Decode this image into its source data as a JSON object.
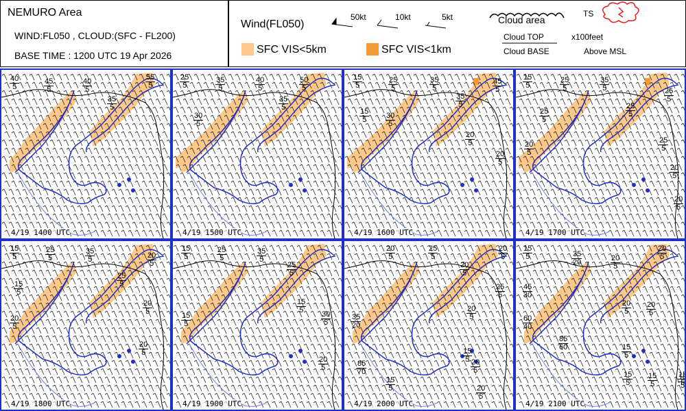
{
  "header": {
    "area": "NEMURO Area",
    "wind_cloud": "WIND:FL050 , CLOUD:(SFC - FL200)",
    "base_time": "BASE TIME : 1200 UTC 19 Apr 2026"
  },
  "legend": {
    "wind_title": "Wind(FL050)",
    "barb_50": "50kt",
    "barb_10": "10kt",
    "barb_5": "5kt",
    "cloud_area": "Cloud area",
    "ts": "TS",
    "cloud_top": "Cloud TOP",
    "cloud_base": "Cloud BASE",
    "unit": "x100feet",
    "above": "Above MSL",
    "vis5": "SFC VIS<5km",
    "vis1": "SFC VIS<1km",
    "vis5_color": "#fdc98a",
    "vis1_color": "#f59a38"
  },
  "panels": [
    {
      "label": "4/19 1400 UTC",
      "clouds": [
        [
          "40",
          "5"
        ],
        [
          "45",
          "5"
        ],
        [
          "40",
          "5"
        ],
        [
          "55",
          "5"
        ],
        [
          "35",
          "5"
        ]
      ]
    },
    {
      "label": "4/19 1500 UTC",
      "clouds": [
        [
          "25",
          "5"
        ],
        [
          "35",
          "5"
        ],
        [
          "40",
          "5"
        ],
        [
          "50",
          "5"
        ],
        [
          "35",
          "5"
        ],
        [
          "30",
          "5"
        ]
      ]
    },
    {
      "label": "4/19 1600 UTC",
      "clouds": [
        [
          "15",
          "5"
        ],
        [
          "25",
          "5"
        ],
        [
          "35",
          "5"
        ],
        [
          "45",
          "5"
        ],
        [
          "35",
          "5"
        ],
        [
          "15",
          "5"
        ],
        [
          "30",
          "5"
        ],
        [
          "20",
          "5"
        ],
        [
          "20",
          "5"
        ]
      ]
    },
    {
      "label": "4/19 1700 UTC",
      "clouds": [
        [
          "15",
          "5"
        ],
        [
          "25",
          "5"
        ],
        [
          "35",
          "5"
        ],
        [
          "25",
          "5"
        ],
        [
          "25",
          "5"
        ],
        [
          "25",
          "5"
        ],
        [
          "20",
          "5"
        ],
        [
          "25",
          "5"
        ],
        [
          "20",
          "5"
        ],
        [
          "20",
          "5"
        ]
      ]
    },
    {
      "label": "4/19 1800 UTC",
      "clouds": [
        [
          "15",
          "5"
        ],
        [
          "25",
          "5"
        ],
        [
          "35",
          "5"
        ],
        [
          "20",
          "5"
        ],
        [
          "25",
          "5"
        ],
        [
          "15",
          "5"
        ],
        [
          "20",
          "5"
        ],
        [
          "20",
          "5"
        ],
        [
          "20",
          "5"
        ]
      ]
    },
    {
      "label": "4/19 1900 UTC",
      "clouds": [
        [
          "15",
          "5"
        ],
        [
          "25",
          "5"
        ],
        [
          "35",
          "5"
        ],
        [
          "25",
          "5"
        ],
        [
          "15",
          "5"
        ],
        [
          "15",
          "5"
        ],
        [
          "30",
          "5"
        ],
        [
          "20",
          "5"
        ]
      ]
    },
    {
      "label": "4/19 2000 UTC",
      "clouds": [
        [
          "20",
          "5"
        ],
        [
          "25",
          "5"
        ],
        [
          "20",
          "5"
        ],
        [
          "20",
          "5"
        ],
        [
          "25",
          "5"
        ],
        [
          "20",
          "5"
        ],
        [
          "35",
          "20"
        ],
        [
          "15",
          "5"
        ],
        [
          "85",
          "70"
        ],
        [
          "15",
          "5"
        ],
        [
          "20",
          "5"
        ],
        [
          "20",
          "5"
        ]
      ]
    },
    {
      "label": "4/19 2100 UTC",
      "clouds": [
        [
          "15",
          "5"
        ],
        [
          "35",
          "20"
        ],
        [
          "20",
          "5"
        ],
        [
          "20",
          "5"
        ],
        [
          "45",
          "30"
        ],
        [
          "20",
          "5"
        ],
        [
          "20",
          "5"
        ],
        [
          "60",
          "40"
        ],
        [
          "85",
          "60"
        ],
        [
          "15",
          "5"
        ],
        [
          "15",
          "5"
        ],
        [
          "15",
          "5"
        ],
        [
          "15",
          "5"
        ],
        [
          "15",
          "5"
        ]
      ]
    }
  ]
}
